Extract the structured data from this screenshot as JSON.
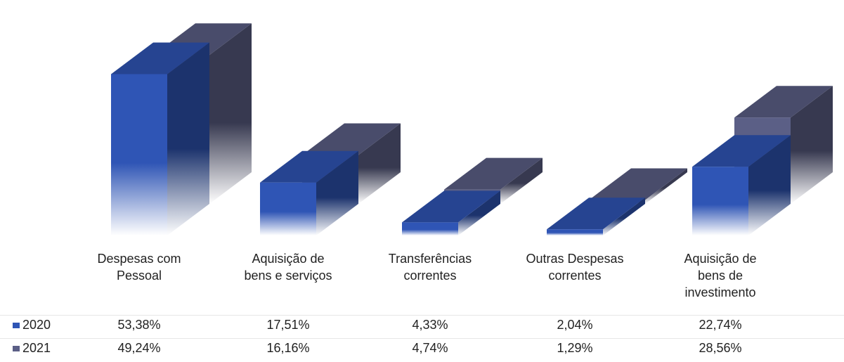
{
  "chart_data": {
    "type": "bar3d",
    "categories": [
      "Despesas com Pessoal",
      "Aquisição de bens e serviços",
      "Transferências correntes",
      "Outras Despesas correntes",
      "Aquisição de bens de investimento"
    ],
    "series": [
      {
        "name": "2020",
        "color": "#2f55b5",
        "values": [
          53.38,
          17.51,
          4.33,
          2.04,
          22.74
        ],
        "value_labels": [
          "53,38%",
          "17,51%",
          "4,33%",
          "2,04%",
          "22,74%"
        ]
      },
      {
        "name": "2021",
        "color": "#5b5f86",
        "values": [
          49.24,
          16.16,
          4.74,
          1.29,
          28.56
        ],
        "value_labels": [
          "49,24%",
          "16,16%",
          "4,74%",
          "1,29%",
          "28,56%"
        ]
      }
    ]
  }
}
